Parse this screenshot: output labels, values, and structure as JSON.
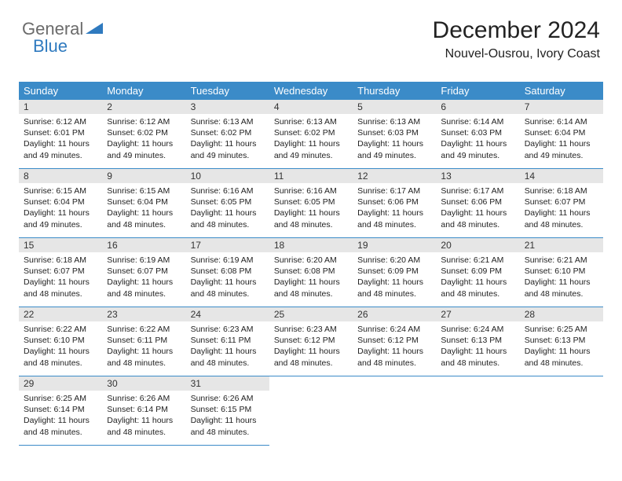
{
  "logo": {
    "part1": "General",
    "part2": "Blue"
  },
  "header": {
    "title": "December 2024",
    "subtitle": "Nouvel-Ousrou, Ivory Coast"
  },
  "colors": {
    "header_bg": "#3b8bc8",
    "header_text": "#ffffff",
    "daynum_bg": "#e6e6e6",
    "cell_border": "#3b8bc8",
    "text": "#222222",
    "logo_gray": "#6b6b6b",
    "logo_blue": "#2f7abf",
    "triangle": "#2f7abf"
  },
  "typography": {
    "title_fontsize": 30,
    "subtitle_fontsize": 16,
    "dayhead_fontsize": 13,
    "daynum_fontsize": 12,
    "info_fontsize": 10.5
  },
  "calendar": {
    "type": "table",
    "columns": 7,
    "day_labels": [
      "Sunday",
      "Monday",
      "Tuesday",
      "Wednesday",
      "Thursday",
      "Friday",
      "Saturday"
    ],
    "days": [
      {
        "num": "1",
        "sunrise": "6:12 AM",
        "sunset": "6:01 PM",
        "daylight": "11 hours and 49 minutes."
      },
      {
        "num": "2",
        "sunrise": "6:12 AM",
        "sunset": "6:02 PM",
        "daylight": "11 hours and 49 minutes."
      },
      {
        "num": "3",
        "sunrise": "6:13 AM",
        "sunset": "6:02 PM",
        "daylight": "11 hours and 49 minutes."
      },
      {
        "num": "4",
        "sunrise": "6:13 AM",
        "sunset": "6:02 PM",
        "daylight": "11 hours and 49 minutes."
      },
      {
        "num": "5",
        "sunrise": "6:13 AM",
        "sunset": "6:03 PM",
        "daylight": "11 hours and 49 minutes."
      },
      {
        "num": "6",
        "sunrise": "6:14 AM",
        "sunset": "6:03 PM",
        "daylight": "11 hours and 49 minutes."
      },
      {
        "num": "7",
        "sunrise": "6:14 AM",
        "sunset": "6:04 PM",
        "daylight": "11 hours and 49 minutes."
      },
      {
        "num": "8",
        "sunrise": "6:15 AM",
        "sunset": "6:04 PM",
        "daylight": "11 hours and 49 minutes."
      },
      {
        "num": "9",
        "sunrise": "6:15 AM",
        "sunset": "6:04 PM",
        "daylight": "11 hours and 48 minutes."
      },
      {
        "num": "10",
        "sunrise": "6:16 AM",
        "sunset": "6:05 PM",
        "daylight": "11 hours and 48 minutes."
      },
      {
        "num": "11",
        "sunrise": "6:16 AM",
        "sunset": "6:05 PM",
        "daylight": "11 hours and 48 minutes."
      },
      {
        "num": "12",
        "sunrise": "6:17 AM",
        "sunset": "6:06 PM",
        "daylight": "11 hours and 48 minutes."
      },
      {
        "num": "13",
        "sunrise": "6:17 AM",
        "sunset": "6:06 PM",
        "daylight": "11 hours and 48 minutes."
      },
      {
        "num": "14",
        "sunrise": "6:18 AM",
        "sunset": "6:07 PM",
        "daylight": "11 hours and 48 minutes."
      },
      {
        "num": "15",
        "sunrise": "6:18 AM",
        "sunset": "6:07 PM",
        "daylight": "11 hours and 48 minutes."
      },
      {
        "num": "16",
        "sunrise": "6:19 AM",
        "sunset": "6:07 PM",
        "daylight": "11 hours and 48 minutes."
      },
      {
        "num": "17",
        "sunrise": "6:19 AM",
        "sunset": "6:08 PM",
        "daylight": "11 hours and 48 minutes."
      },
      {
        "num": "18",
        "sunrise": "6:20 AM",
        "sunset": "6:08 PM",
        "daylight": "11 hours and 48 minutes."
      },
      {
        "num": "19",
        "sunrise": "6:20 AM",
        "sunset": "6:09 PM",
        "daylight": "11 hours and 48 minutes."
      },
      {
        "num": "20",
        "sunrise": "6:21 AM",
        "sunset": "6:09 PM",
        "daylight": "11 hours and 48 minutes."
      },
      {
        "num": "21",
        "sunrise": "6:21 AM",
        "sunset": "6:10 PM",
        "daylight": "11 hours and 48 minutes."
      },
      {
        "num": "22",
        "sunrise": "6:22 AM",
        "sunset": "6:10 PM",
        "daylight": "11 hours and 48 minutes."
      },
      {
        "num": "23",
        "sunrise": "6:22 AM",
        "sunset": "6:11 PM",
        "daylight": "11 hours and 48 minutes."
      },
      {
        "num": "24",
        "sunrise": "6:23 AM",
        "sunset": "6:11 PM",
        "daylight": "11 hours and 48 minutes."
      },
      {
        "num": "25",
        "sunrise": "6:23 AM",
        "sunset": "6:12 PM",
        "daylight": "11 hours and 48 minutes."
      },
      {
        "num": "26",
        "sunrise": "6:24 AM",
        "sunset": "6:12 PM",
        "daylight": "11 hours and 48 minutes."
      },
      {
        "num": "27",
        "sunrise": "6:24 AM",
        "sunset": "6:13 PM",
        "daylight": "11 hours and 48 minutes."
      },
      {
        "num": "28",
        "sunrise": "6:25 AM",
        "sunset": "6:13 PM",
        "daylight": "11 hours and 48 minutes."
      },
      {
        "num": "29",
        "sunrise": "6:25 AM",
        "sunset": "6:14 PM",
        "daylight": "11 hours and 48 minutes."
      },
      {
        "num": "30",
        "sunrise": "6:26 AM",
        "sunset": "6:14 PM",
        "daylight": "11 hours and 48 minutes."
      },
      {
        "num": "31",
        "sunrise": "6:26 AM",
        "sunset": "6:15 PM",
        "daylight": "11 hours and 48 minutes."
      }
    ],
    "labels": {
      "sunrise": "Sunrise: ",
      "sunset": "Sunset: ",
      "daylight": "Daylight: "
    }
  }
}
